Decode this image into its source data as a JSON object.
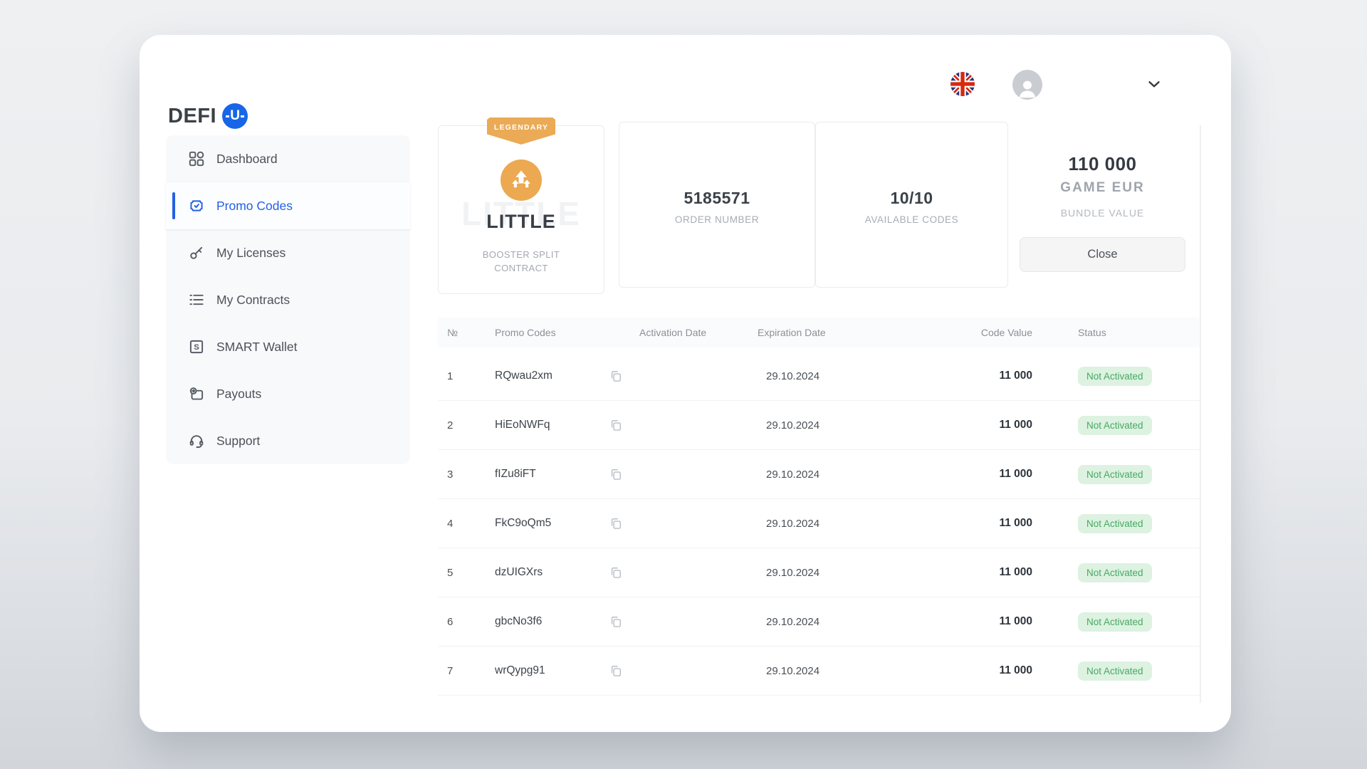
{
  "header": {
    "logo_text": "DEFI",
    "logo_badge": "U",
    "language": "en-GB"
  },
  "sidebar": {
    "items": [
      {
        "label": "Dashboard",
        "icon": "dashboard-grid-icon",
        "active": false
      },
      {
        "label": "Promo Codes",
        "icon": "promo-ticket-icon",
        "active": true
      },
      {
        "label": "My Licenses",
        "icon": "key-icon",
        "active": false
      },
      {
        "label": "My Contracts",
        "icon": "contracts-list-icon",
        "active": false
      },
      {
        "label": "SMART Wallet",
        "icon": "smart-wallet-icon",
        "active": false
      },
      {
        "label": "Payouts",
        "icon": "payout-wallet-icon",
        "active": false
      },
      {
        "label": "Support",
        "icon": "headset-icon",
        "active": false
      }
    ]
  },
  "bundle": {
    "tier_badge": "LEGENDARY",
    "name": "LITTLE",
    "type": "BOOSTER SPLIT CONTRACT",
    "order_number": "5185571",
    "order_number_label": "ORDER NUMBER",
    "available_codes": "10/10",
    "available_codes_label": "AVAILABLE CODES",
    "value": "110 000",
    "currency": "GAME EUR",
    "value_label": "BUNDLE VALUE",
    "close_label": "Close"
  },
  "table": {
    "columns": {
      "num": "№",
      "promo": "Promo Codes",
      "activation": "Activation Date",
      "expiration": "Expiration Date",
      "value": "Code Value",
      "status": "Status"
    },
    "rows": [
      {
        "num": "1",
        "code": "RQwau2xm",
        "activation": "",
        "expiration": "29.10.2024",
        "value": "11 000",
        "status": "Not Activated"
      },
      {
        "num": "2",
        "code": "HiEoNWFq",
        "activation": "",
        "expiration": "29.10.2024",
        "value": "11 000",
        "status": "Not Activated"
      },
      {
        "num": "3",
        "code": "fIZu8iFT",
        "activation": "",
        "expiration": "29.10.2024",
        "value": "11 000",
        "status": "Not Activated"
      },
      {
        "num": "4",
        "code": "FkC9oQm5",
        "activation": "",
        "expiration": "29.10.2024",
        "value": "11 000",
        "status": "Not Activated"
      },
      {
        "num": "5",
        "code": "dzUIGXrs",
        "activation": "",
        "expiration": "29.10.2024",
        "value": "11 000",
        "status": "Not Activated"
      },
      {
        "num": "6",
        "code": "gbcNo3f6",
        "activation": "",
        "expiration": "29.10.2024",
        "value": "11 000",
        "status": "Not Activated"
      },
      {
        "num": "7",
        "code": "wrQypg91",
        "activation": "",
        "expiration": "29.10.2024",
        "value": "11 000",
        "status": "Not Activated"
      }
    ]
  },
  "colors": {
    "accent_blue": "#2461e3",
    "brand_blue": "#1766e8",
    "tier_orange": "#ebaa55",
    "status_badge_bg": "#ddf2e1",
    "status_badge_text": "#47a964"
  }
}
